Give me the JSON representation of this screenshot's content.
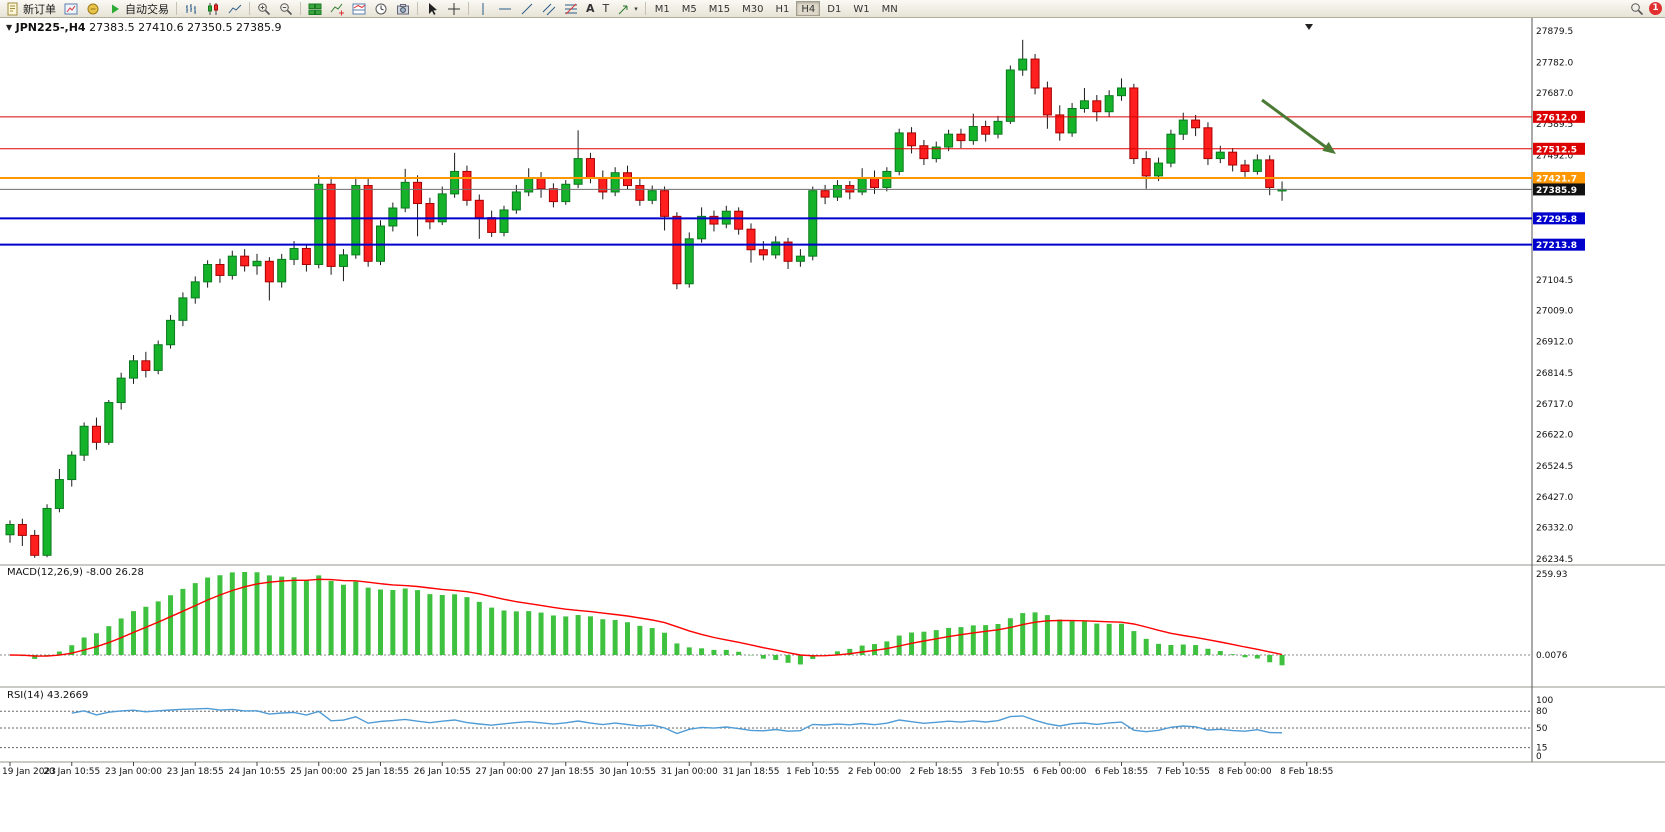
{
  "toolbar": {
    "new_order_label": "新订单",
    "autotrade_label": "自动交易",
    "timeframes": [
      "M1",
      "M5",
      "M15",
      "M30",
      "H1",
      "H4",
      "D1",
      "W1",
      "MN"
    ],
    "active_timeframe": "H4",
    "notification_count": "1"
  },
  "chart_header": {
    "symbol": "JPN225-,H4",
    "quote": "27383.5 27410.6 27350.5 27385.9"
  },
  "indicators": {
    "macd_label": "MACD(12,26,9)",
    "macd_values": "-8.00 26.28",
    "rsi_label": "RSI(14)",
    "rsi_value": "43.2669"
  },
  "colors": {
    "up": "#14b32a",
    "down": "#ff1f1f",
    "up_border": "#0a7a1e",
    "down_border": "#a80000",
    "wick": "#1a1a1a",
    "macd_bar": "#3ec13e",
    "macd_signal": "#ff0000",
    "rsi_line": "#4f9bd5",
    "arrow": "#4a7a33"
  },
  "chart_data": {
    "type": "candlestick",
    "symbol": "JPN225-",
    "timeframe": "H4",
    "ohlc_current": {
      "open": 27383.5,
      "high": 27410.6,
      "low": 27350.5,
      "close": 27385.9
    },
    "ylim": [
      26234.5,
      27879.5
    ],
    "price_axis_ticks": [
      27879.5,
      27782.0,
      27687.0,
      27589.5,
      27492.0,
      27104.5,
      27009.0,
      26912.0,
      26814.5,
      26717.0,
      26622.0,
      26524.5,
      26427.0,
      26332.0,
      26234.5
    ],
    "hlines": [
      {
        "price": 27612.0,
        "label": "27612.0",
        "color": "#dd0000",
        "width": 1
      },
      {
        "price": 27512.5,
        "label": "27512.5",
        "color": "#dd0000",
        "width": 1
      },
      {
        "price": 27421.7,
        "label": "27421.7",
        "color": "#ff9800",
        "width": 2
      },
      {
        "price": 27385.9,
        "label": "27385.9",
        "color": "#6e6e6e",
        "width": 1,
        "bid": true
      },
      {
        "price": 27295.8,
        "label": "27295.8",
        "color": "#0000cc",
        "width": 2
      },
      {
        "price": 27213.8,
        "label": "27213.8",
        "color": "#0000cc",
        "width": 2
      }
    ],
    "candles": [
      [
        26310,
        26355,
        26285,
        26342
      ],
      [
        26342,
        26360,
        26275,
        26308
      ],
      [
        26308,
        26325,
        26238,
        26246
      ],
      [
        26246,
        26405,
        26240,
        26392
      ],
      [
        26392,
        26515,
        26380,
        26482
      ],
      [
        26482,
        26570,
        26460,
        26558
      ],
      [
        26558,
        26660,
        26540,
        26648
      ],
      [
        26648,
        26675,
        26575,
        26598
      ],
      [
        26598,
        26730,
        26590,
        26722
      ],
      [
        26722,
        26815,
        26700,
        26798
      ],
      [
        26798,
        26870,
        26780,
        26852
      ],
      [
        26852,
        26880,
        26800,
        26822
      ],
      [
        26822,
        26915,
        26810,
        26902
      ],
      [
        26902,
        26995,
        26890,
        26978
      ],
      [
        26978,
        27065,
        26960,
        27048
      ],
      [
        27048,
        27115,
        27030,
        27098
      ],
      [
        27098,
        27165,
        27080,
        27152
      ],
      [
        27152,
        27170,
        27095,
        27118
      ],
      [
        27118,
        27195,
        27105,
        27178
      ],
      [
        27178,
        27200,
        27130,
        27148
      ],
      [
        27148,
        27185,
        27120,
        27162
      ],
      [
        27162,
        27175,
        27040,
        27098
      ],
      [
        27098,
        27185,
        27080,
        27168
      ],
      [
        27168,
        27225,
        27150,
        27202
      ],
      [
        27202,
        27215,
        27130,
        27152
      ],
      [
        27152,
        27430,
        27140,
        27402
      ],
      [
        27402,
        27425,
        27120,
        27146
      ],
      [
        27146,
        27200,
        27100,
        27182
      ],
      [
        27182,
        27425,
        27170,
        27398
      ],
      [
        27398,
        27420,
        27145,
        27162
      ],
      [
        27162,
        27290,
        27150,
        27272
      ],
      [
        27272,
        27345,
        27255,
        27328
      ],
      [
        27328,
        27450,
        27315,
        27408
      ],
      [
        27408,
        27430,
        27240,
        27342
      ],
      [
        27342,
        27360,
        27262,
        27285
      ],
      [
        27285,
        27395,
        27275,
        27372
      ],
      [
        27372,
        27500,
        27360,
        27442
      ],
      [
        27442,
        27460,
        27335,
        27352
      ],
      [
        27352,
        27370,
        27232,
        27298
      ],
      [
        27298,
        27320,
        27238,
        27252
      ],
      [
        27252,
        27335,
        27240,
        27322
      ],
      [
        27322,
        27400,
        27310,
        27378
      ],
      [
        27378,
        27452,
        27365,
        27422
      ],
      [
        27422,
        27440,
        27360,
        27388
      ],
      [
        27388,
        27405,
        27330,
        27348
      ],
      [
        27348,
        27415,
        27338,
        27402
      ],
      [
        27402,
        27570,
        27390,
        27482
      ],
      [
        27482,
        27500,
        27405,
        27422
      ],
      [
        27422,
        27445,
        27355,
        27378
      ],
      [
        27378,
        27455,
        27365,
        27438
      ],
      [
        27438,
        27460,
        27385,
        27398
      ],
      [
        27398,
        27420,
        27335,
        27352
      ],
      [
        27352,
        27398,
        27340,
        27382
      ],
      [
        27382,
        27395,
        27258,
        27302
      ],
      [
        27302,
        27315,
        27075,
        27092
      ],
      [
        27092,
        27252,
        27080,
        27232
      ],
      [
        27232,
        27330,
        27220,
        27302
      ],
      [
        27302,
        27320,
        27255,
        27278
      ],
      [
        27278,
        27335,
        27265,
        27318
      ],
      [
        27318,
        27330,
        27245,
        27262
      ],
      [
        27262,
        27280,
        27158,
        27198
      ],
      [
        27198,
        27225,
        27165,
        27182
      ],
      [
        27182,
        27240,
        27170,
        27222
      ],
      [
        27222,
        27235,
        27138,
        27162
      ],
      [
        27162,
        27200,
        27145,
        27178
      ],
      [
        27178,
        27395,
        27165,
        27382
      ],
      [
        27382,
        27400,
        27340,
        27362
      ],
      [
        27362,
        27415,
        27350,
        27398
      ],
      [
        27398,
        27412,
        27355,
        27378
      ],
      [
        27378,
        27452,
        27368,
        27422
      ],
      [
        27422,
        27445,
        27372,
        27392
      ],
      [
        27392,
        27455,
        27380,
        27442
      ],
      [
        27442,
        27575,
        27430,
        27562
      ],
      [
        27562,
        27580,
        27498,
        27522
      ],
      [
        27522,
        27540,
        27462,
        27482
      ],
      [
        27482,
        27535,
        27470,
        27518
      ],
      [
        27518,
        27572,
        27505,
        27558
      ],
      [
        27558,
        27575,
        27515,
        27538
      ],
      [
        27538,
        27622,
        27525,
        27582
      ],
      [
        27582,
        27600,
        27535,
        27558
      ],
      [
        27558,
        27615,
        27545,
        27598
      ],
      [
        27598,
        27772,
        27590,
        27758
      ],
      [
        27758,
        27852,
        27740,
        27792
      ],
      [
        27792,
        27808,
        27682,
        27702
      ],
      [
        27702,
        27722,
        27575,
        27618
      ],
      [
        27618,
        27648,
        27538,
        27562
      ],
      [
        27562,
        27655,
        27550,
        27638
      ],
      [
        27638,
        27702,
        27625,
        27662
      ],
      [
        27662,
        27680,
        27598,
        27628
      ],
      [
        27628,
        27695,
        27612,
        27678
      ],
      [
        27678,
        27732,
        27662,
        27702
      ],
      [
        27702,
        27715,
        27465,
        27482
      ],
      [
        27482,
        27505,
        27388,
        27428
      ],
      [
        27428,
        27485,
        27412,
        27468
      ],
      [
        27468,
        27572,
        27455,
        27558
      ],
      [
        27558,
        27625,
        27540,
        27602
      ],
      [
        27602,
        27618,
        27552,
        27578
      ],
      [
        27578,
        27595,
        27462,
        27482
      ],
      [
        27482,
        27522,
        27468,
        27502
      ],
      [
        27502,
        27515,
        27442,
        27462
      ],
      [
        27462,
        27478,
        27425,
        27442
      ],
      [
        27442,
        27495,
        27432,
        27478
      ],
      [
        27478,
        27492,
        27368,
        27392
      ],
      [
        27383.5,
        27410.6,
        27350.5,
        27385.9
      ]
    ],
    "bars_per_label": 5,
    "time_labels": [
      "19 Jan 2023",
      "20 Jan 10:55",
      "23 Jan 00:00",
      "23 Jan 18:55",
      "24 Jan 10:55",
      "25 Jan 00:00",
      "25 Jan 18:55",
      "26 Jan 10:55",
      "27 Jan 00:00",
      "27 Jan 18:55",
      "30 Jan 10:55",
      "31 Jan 00:00",
      "31 Jan 18:55",
      "1 Feb 10:55",
      "2 Feb 00:00",
      "2 Feb 18:55",
      "3 Feb 10:55",
      "6 Feb 00:00",
      "6 Feb 18:55",
      "7 Feb 10:55",
      "8 Feb 00:00",
      "8 Feb 18:55"
    ],
    "macd": {
      "params": [
        12,
        26,
        9
      ],
      "axis_labels": [
        "259.93",
        "0.0076"
      ]
    },
    "rsi": {
      "period": 14,
      "levels": [
        80,
        50,
        15
      ],
      "axis_labels": [
        100,
        80,
        50,
        15,
        0
      ]
    },
    "annotation_arrow": {
      "desc": "green down-right arrow above price near resistance"
    }
  }
}
